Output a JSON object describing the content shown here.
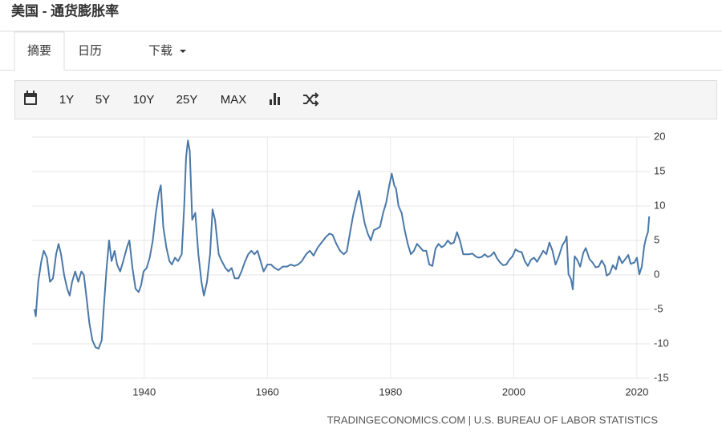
{
  "header": {
    "title": "美国 - 通货膨胀率"
  },
  "tabs": [
    "摘要",
    "日历",
    "下载"
  ],
  "toolbar": [
    "1Y",
    "5Y",
    "10Y",
    "25Y",
    "MAX"
  ],
  "chart_data": {
    "type": "line",
    "source": "TRADINGECONOMICS.COM | U.S. BUREAU OF LABOR STATISTICS",
    "x": [
      1922.2,
      1922.4,
      1922.8,
      1923.3,
      1923.7,
      1924.2,
      1924.7,
      1925.2,
      1925.7,
      1926.1,
      1926.5,
      1927,
      1927.5,
      1927.9,
      1928.3,
      1928.8,
      1929.3,
      1929.8,
      1930.2,
      1930.6,
      1931.1,
      1931.6,
      1932.1,
      1932.6,
      1933.1,
      1933.5,
      1933.9,
      1934.3,
      1934.7,
      1935.2,
      1935.6,
      1936.1,
      1936.6,
      1937.2,
      1937.6,
      1938.1,
      1938.6,
      1939.1,
      1939.5,
      1939.9,
      1940.4,
      1940.9,
      1941.4,
      1941.9,
      1942.4,
      1942.7,
      1943.1,
      1943.6,
      1944.1,
      1944.5,
      1945,
      1945.5,
      1946.1,
      1946.5,
      1946.8,
      1947.1,
      1947.4,
      1947.8,
      1948.3,
      1948.8,
      1949.3,
      1949.7,
      1950.2,
      1950.7,
      1951.1,
      1951.5,
      1952.1,
      1952.6,
      1953.2,
      1953.7,
      1954.2,
      1954.7,
      1955.3,
      1955.8,
      1956.4,
      1956.9,
      1957.4,
      1957.9,
      1958.4,
      1958.9,
      1959.4,
      1960,
      1960.6,
      1961.2,
      1961.8,
      1962.5,
      1963.2,
      1963.8,
      1964.4,
      1965,
      1965.6,
      1966.3,
      1966.9,
      1967.5,
      1968.2,
      1968.8,
      1969.5,
      1970.1,
      1970.6,
      1971.2,
      1971.8,
      1972.4,
      1972.9,
      1973.4,
      1973.9,
      1974.4,
      1974.9,
      1975.3,
      1975.8,
      1976.3,
      1976.8,
      1977.3,
      1977.8,
      1978.3,
      1978.8,
      1979.3,
      1979.8,
      1980.2,
      1980.6,
      1980.9,
      1981.3,
      1981.8,
      1982.3,
      1982.8,
      1983.3,
      1983.8,
      1984.3,
      1984.8,
      1985.3,
      1985.8,
      1986.3,
      1986.8,
      1987.3,
      1987.8,
      1988.3,
      1988.8,
      1989.3,
      1989.8,
      1990.3,
      1990.8,
      1991.3,
      1991.8,
      1992.3,
      1992.8,
      1993.3,
      1993.8,
      1994.3,
      1994.8,
      1995.3,
      1995.8,
      1996.3,
      1996.8,
      1997.3,
      1997.8,
      1998.3,
      1998.8,
      1999.3,
      1999.8,
      2000.3,
      2000.8,
      2001.3,
      2001.8,
      2002.3,
      2002.8,
      2003.3,
      2003.8,
      2004.3,
      2004.8,
      2005.3,
      2005.8,
      2006.3,
      2006.8,
      2007.3,
      2007.9,
      2008.4,
      2008.6,
      2008.9,
      2009.3,
      2009.6,
      2009.9,
      2010.3,
      2010.8,
      2011.3,
      2011.7,
      2012.3,
      2012.8,
      2013.3,
      2013.8,
      2014.3,
      2014.8,
      2015.1,
      2015.6,
      2016.1,
      2016.6,
      2017.1,
      2017.6,
      2018.3,
      2018.6,
      2019,
      2019.6,
      2020,
      2020.4,
      2020.8,
      2021.2,
      2021.5,
      2021.8,
      2022
    ],
    "series": [
      {
        "color": "#4a78a8",
        "values": [
          -5,
          -6,
          -1,
          2,
          3.5,
          2.5,
          -1,
          -0.5,
          3,
          4.5,
          3,
          0,
          -2,
          -3,
          -1,
          0.5,
          -1,
          0.5,
          0,
          -3,
          -7,
          -9.5,
          -10.5,
          -10.7,
          -9.5,
          -4,
          1,
          5,
          2,
          3.5,
          1.5,
          0.5,
          2,
          4,
          5,
          1,
          -2,
          -2.5,
          -1.5,
          0.5,
          1,
          2.5,
          5,
          9,
          12,
          13,
          7,
          4,
          2,
          1.5,
          2.5,
          2,
          3,
          10,
          17,
          19.5,
          18,
          8,
          9,
          3,
          -1,
          -3,
          -1,
          3,
          9.5,
          8,
          3,
          2,
          1,
          0.5,
          1,
          -0.5,
          -0.5,
          0.5,
          2,
          3,
          3.5,
          3,
          3.5,
          2,
          0.5,
          1.5,
          1.5,
          1,
          0.7,
          1.2,
          1.2,
          1.5,
          1.3,
          1.5,
          2,
          3,
          3.5,
          2.8,
          4,
          4.7,
          5.5,
          6,
          5.8,
          4.5,
          3.5,
          3,
          3.4,
          6,
          8.5,
          10.5,
          12.2,
          10,
          7.5,
          6,
          5,
          6.5,
          6.7,
          7,
          9,
          10.5,
          13,
          14.7,
          13,
          12.5,
          10,
          9,
          6.5,
          4.5,
          3,
          3.5,
          4.5,
          4,
          3.5,
          3.5,
          1.5,
          1.3,
          3.8,
          4.5,
          4,
          4.3,
          5,
          4.5,
          4.7,
          6.2,
          4.9,
          3,
          3,
          3,
          3.1,
          2.7,
          2.5,
          2.6,
          3,
          2.6,
          2.8,
          3.3,
          2.4,
          1.8,
          1.4,
          1.5,
          2.2,
          2.7,
          3.7,
          3.4,
          3.3,
          2,
          1.3,
          2.2,
          2.5,
          1.9,
          2.7,
          3.5,
          3,
          4.7,
          3.5,
          1.5,
          2.6,
          4.3,
          5,
          5.6,
          0.1,
          -0.6,
          -2.1,
          2.7,
          2.2,
          1.2,
          3.2,
          3.9,
          2.3,
          1.8,
          1.1,
          1.2,
          2.1,
          1.3,
          -0.1,
          0.2,
          1.4,
          0.8,
          2.7,
          1.7,
          2.5,
          2.9,
          1.6,
          1.8,
          2.5,
          0.1,
          1.2,
          4.2,
          5.4,
          6.2,
          8.5
        ]
      }
    ],
    "xlim": [
      1921.8,
      2022.1
    ],
    "xticks": [
      1940,
      1960,
      1980,
      2000,
      2020
    ],
    "ylim": [
      -15,
      20
    ],
    "yticks": [
      -15,
      -10,
      -5,
      0,
      5,
      10,
      15,
      20
    ],
    "grid": true
  }
}
